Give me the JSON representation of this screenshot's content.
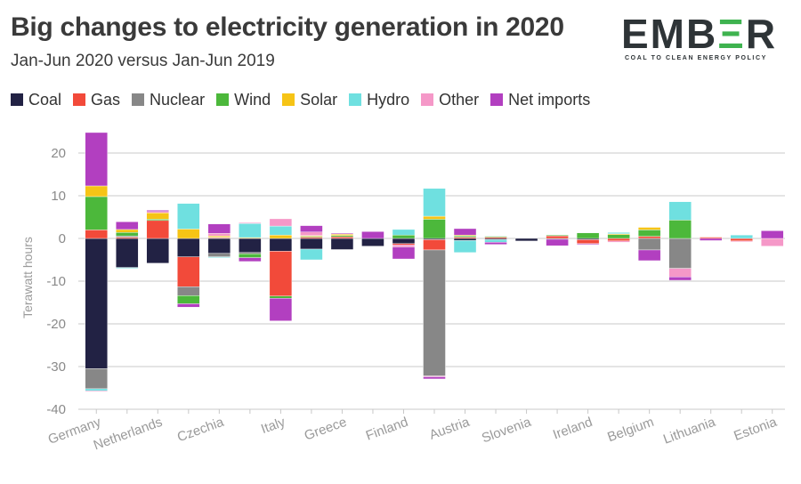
{
  "header": {
    "title": "Big changes to electricity generation in 2020",
    "subtitle": "Jan-Jun 2020 versus Jan-Jun 2019"
  },
  "logo": {
    "word_start": "EMB",
    "word_accent": "Ξ",
    "word_end": "R",
    "tagline": "COAL TO CLEAN ENERGY POLICY"
  },
  "colors": {
    "Coal": "#222244",
    "Gas": "#f24a3a",
    "Nuclear": "#878787",
    "Wind": "#4cb83b",
    "Solar": "#f6c416",
    "Hydro": "#6fe0e0",
    "Other": "#f598c8",
    "Net imports": "#b23fc0"
  },
  "chart_data": {
    "type": "bar",
    "stacked": true,
    "title": "Big changes to electricity generation in 2020",
    "subtitle": "Jan-Jun 2020 versus Jan-Jun 2019",
    "ylabel": "Terawatt hours",
    "ylim": [
      -40,
      25
    ],
    "yticks": [
      20,
      10,
      0,
      -10,
      -20,
      -30,
      -40
    ],
    "grid": true,
    "legend_position": "top",
    "categories": [
      "Germany",
      "Netherlands",
      "Czechia",
      "Italy",
      "Greece",
      "Finland",
      "Austria",
      "Slovenia",
      "Ireland",
      "Belgium",
      "Lithuania",
      "Estonia"
    ],
    "labeled_categories": [
      "Germany",
      "Netherlands",
      "Czechia",
      "Italy",
      "Greece",
      "Finland",
      "Austria",
      "Slovenia",
      "Ireland",
      "Belgium",
      "Lithuania",
      "Estonia"
    ],
    "bars": [
      {
        "name": "Germany",
        "values": {
          "Coal": -30.5,
          "Gas": 2.0,
          "Nuclear": -4.7,
          "Wind": 7.8,
          "Solar": 2.5,
          "Hydro": -0.5,
          "Other": -0.2,
          "Net imports": 12.5
        }
      },
      {
        "name": "",
        "values": {
          "Coal": -6.8,
          "Gas": 0.3,
          "Nuclear": 0.3,
          "Wind": 0.8,
          "Solar": 0.7,
          "Hydro": -0.2,
          "Other": 0.0,
          "Net imports": 1.8
        }
      },
      {
        "name": "Netherlands",
        "values": {
          "Coal": -5.8,
          "Gas": 4.2,
          "Nuclear": 0.0,
          "Wind": 0.3,
          "Solar": 1.5,
          "Hydro": 0.0,
          "Other": 0.3,
          "Net imports": 0.3
        }
      },
      {
        "name": "",
        "values": {
          "Coal": -4.3,
          "Gas": -7.0,
          "Nuclear": -2.1,
          "Wind": -1.9,
          "Solar": 2.2,
          "Hydro": 6.0,
          "Other": 0.0,
          "Net imports": -0.8
        }
      },
      {
        "name": "Czechia",
        "values": {
          "Coal": -3.5,
          "Gas": 0.2,
          "Nuclear": -0.8,
          "Wind": 0.1,
          "Solar": 0.3,
          "Hydro": -0.2,
          "Other": 0.6,
          "Net imports": 2.2
        }
      },
      {
        "name": "",
        "values": {
          "Coal": -3.3,
          "Gas": 0.0,
          "Nuclear": -0.3,
          "Wind": -0.9,
          "Solar": 0.2,
          "Hydro": 3.3,
          "Other": 0.2,
          "Net imports": -0.9
        }
      },
      {
        "name": "Italy",
        "values": {
          "Coal": -3.0,
          "Gas": -10.5,
          "Nuclear": 0.0,
          "Wind": -0.5,
          "Solar": 0.8,
          "Hydro": 2.1,
          "Other": 1.7,
          "Net imports": -5.3
        }
      },
      {
        "name": "",
        "values": {
          "Coal": -2.5,
          "Gas": 0.3,
          "Nuclear": 0.0,
          "Wind": 0.2,
          "Solar": 0.2,
          "Hydro": -2.5,
          "Other": 0.8,
          "Net imports": 1.5
        }
      },
      {
        "name": "Greece",
        "values": {
          "Coal": -2.6,
          "Gas": 0.4,
          "Nuclear": 0.0,
          "Wind": 0.3,
          "Solar": 0.3,
          "Hydro": 0.0,
          "Other": 0.0,
          "Net imports": 0.2
        }
      },
      {
        "name": "",
        "values": {
          "Coal": -1.8,
          "Gas": 0.0,
          "Nuclear": 0.0,
          "Wind": 0.0,
          "Solar": 0.0,
          "Hydro": 0.0,
          "Other": 0.0,
          "Net imports": 1.6
        }
      },
      {
        "name": "Finland",
        "values": {
          "Coal": -1.2,
          "Gas": -0.3,
          "Nuclear": 0.0,
          "Wind": 0.8,
          "Solar": 0.0,
          "Hydro": 1.3,
          "Other": -0.5,
          "Net imports": -2.8
        }
      },
      {
        "name": "",
        "values": {
          "Coal": -0.3,
          "Gas": -2.4,
          "Nuclear": -29.5,
          "Wind": 4.5,
          "Solar": 0.7,
          "Hydro": 6.5,
          "Other": -0.2,
          "Net imports": -0.5
        }
      },
      {
        "name": "Austria",
        "values": {
          "Coal": -0.5,
          "Gas": 0.3,
          "Nuclear": 0.0,
          "Wind": 0.3,
          "Solar": 0.2,
          "Hydro": -2.8,
          "Other": 0.0,
          "Net imports": 1.5
        }
      },
      {
        "name": "",
        "values": {
          "Coal": -0.3,
          "Gas": 0.3,
          "Nuclear": 0.0,
          "Wind": 0.2,
          "Solar": 0.0,
          "Hydro": -0.6,
          "Other": 0.0,
          "Net imports": -0.5
        }
      },
      {
        "name": "Slovenia",
        "values": {
          "Coal": -0.6,
          "Gas": 0.0,
          "Nuclear": 0.0,
          "Wind": 0.0,
          "Solar": 0.0,
          "Hydro": 0.0,
          "Other": 0.0,
          "Net imports": 0.0
        }
      },
      {
        "name": "",
        "values": {
          "Coal": -0.2,
          "Gas": 0.6,
          "Nuclear": 0.0,
          "Wind": 0.2,
          "Solar": 0.0,
          "Hydro": 0.0,
          "Other": 0.0,
          "Net imports": -1.5
        }
      },
      {
        "name": "Ireland",
        "values": {
          "Coal": -0.3,
          "Gas": -0.9,
          "Nuclear": 0.0,
          "Wind": 1.3,
          "Solar": 0.0,
          "Hydro": 0.0,
          "Other": 0.0,
          "Net imports": -0.2
        }
      },
      {
        "name": "",
        "values": {
          "Coal": 0.0,
          "Gas": -0.6,
          "Nuclear": 0.0,
          "Wind": 0.9,
          "Solar": 0.2,
          "Hydro": 0.3,
          "Other": -0.3,
          "Net imports": 0.0
        }
      },
      {
        "name": "Belgium",
        "values": {
          "Coal": 0.0,
          "Gas": 0.5,
          "Nuclear": -2.7,
          "Wind": 1.5,
          "Solar": 0.6,
          "Hydro": 0.0,
          "Other": 0.0,
          "Net imports": -2.5
        }
      },
      {
        "name": "",
        "values": {
          "Coal": 0.0,
          "Gas": 0.0,
          "Nuclear": -7.0,
          "Wind": 4.3,
          "Solar": 0.0,
          "Hydro": 4.3,
          "Other": -2.0,
          "Net imports": -0.8
        }
      },
      {
        "name": "Lithuania",
        "values": {
          "Coal": 0.0,
          "Gas": 0.3,
          "Nuclear": 0.0,
          "Wind": 0.0,
          "Solar": 0.0,
          "Hydro": 0.0,
          "Other": 0.0,
          "Net imports": -0.5
        }
      },
      {
        "name": "",
        "values": {
          "Coal": 0.0,
          "Gas": -0.6,
          "Nuclear": 0.0,
          "Wind": 0.0,
          "Solar": 0.0,
          "Hydro": 0.8,
          "Other": -0.2,
          "Net imports": 0.0
        }
      },
      {
        "name": "Estonia",
        "values": {
          "Coal": 0.0,
          "Gas": 0.0,
          "Nuclear": 0.0,
          "Wind": 0.0,
          "Solar": 0.0,
          "Hydro": 0.0,
          "Other": -1.8,
          "Net imports": 1.8
        }
      }
    ],
    "series_order": [
      "Coal",
      "Gas",
      "Nuclear",
      "Wind",
      "Solar",
      "Hydro",
      "Other",
      "Net imports"
    ]
  }
}
